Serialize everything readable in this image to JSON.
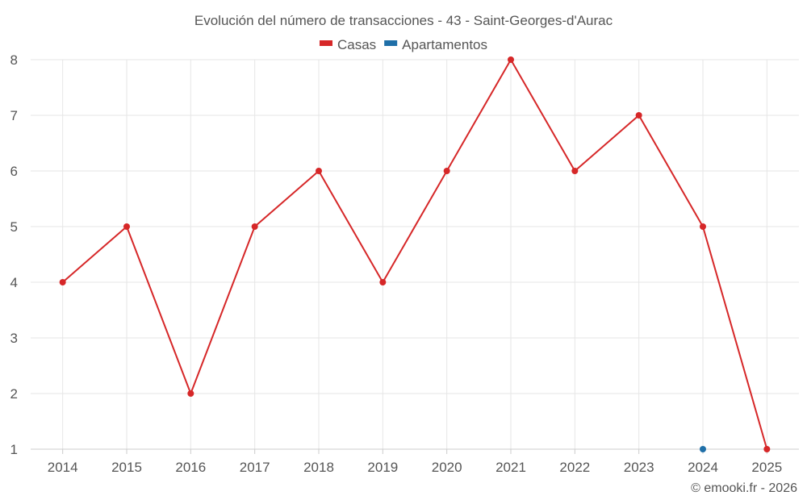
{
  "chart_data": {
    "type": "line",
    "title": "Evolución del número de transacciones - 43 - Saint-Georges-d'Aurac",
    "categories": [
      "2014",
      "2015",
      "2016",
      "2017",
      "2018",
      "2019",
      "2020",
      "2021",
      "2022",
      "2023",
      "2024",
      "2025"
    ],
    "ylim": [
      1,
      8
    ],
    "yticks": [
      1,
      2,
      3,
      4,
      5,
      6,
      7,
      8
    ],
    "grid": true,
    "legend_position": "top-center",
    "series": [
      {
        "name": "Casas",
        "color": "#d62728",
        "values": [
          4,
          5,
          2,
          5,
          6,
          4,
          6,
          8,
          6,
          7,
          5,
          1
        ]
      },
      {
        "name": "Apartamentos",
        "color": "#1f6fa8",
        "values": [
          null,
          null,
          null,
          null,
          null,
          null,
          null,
          null,
          null,
          null,
          1,
          null
        ]
      }
    ]
  },
  "credit": "© emooki.fr - 2026"
}
